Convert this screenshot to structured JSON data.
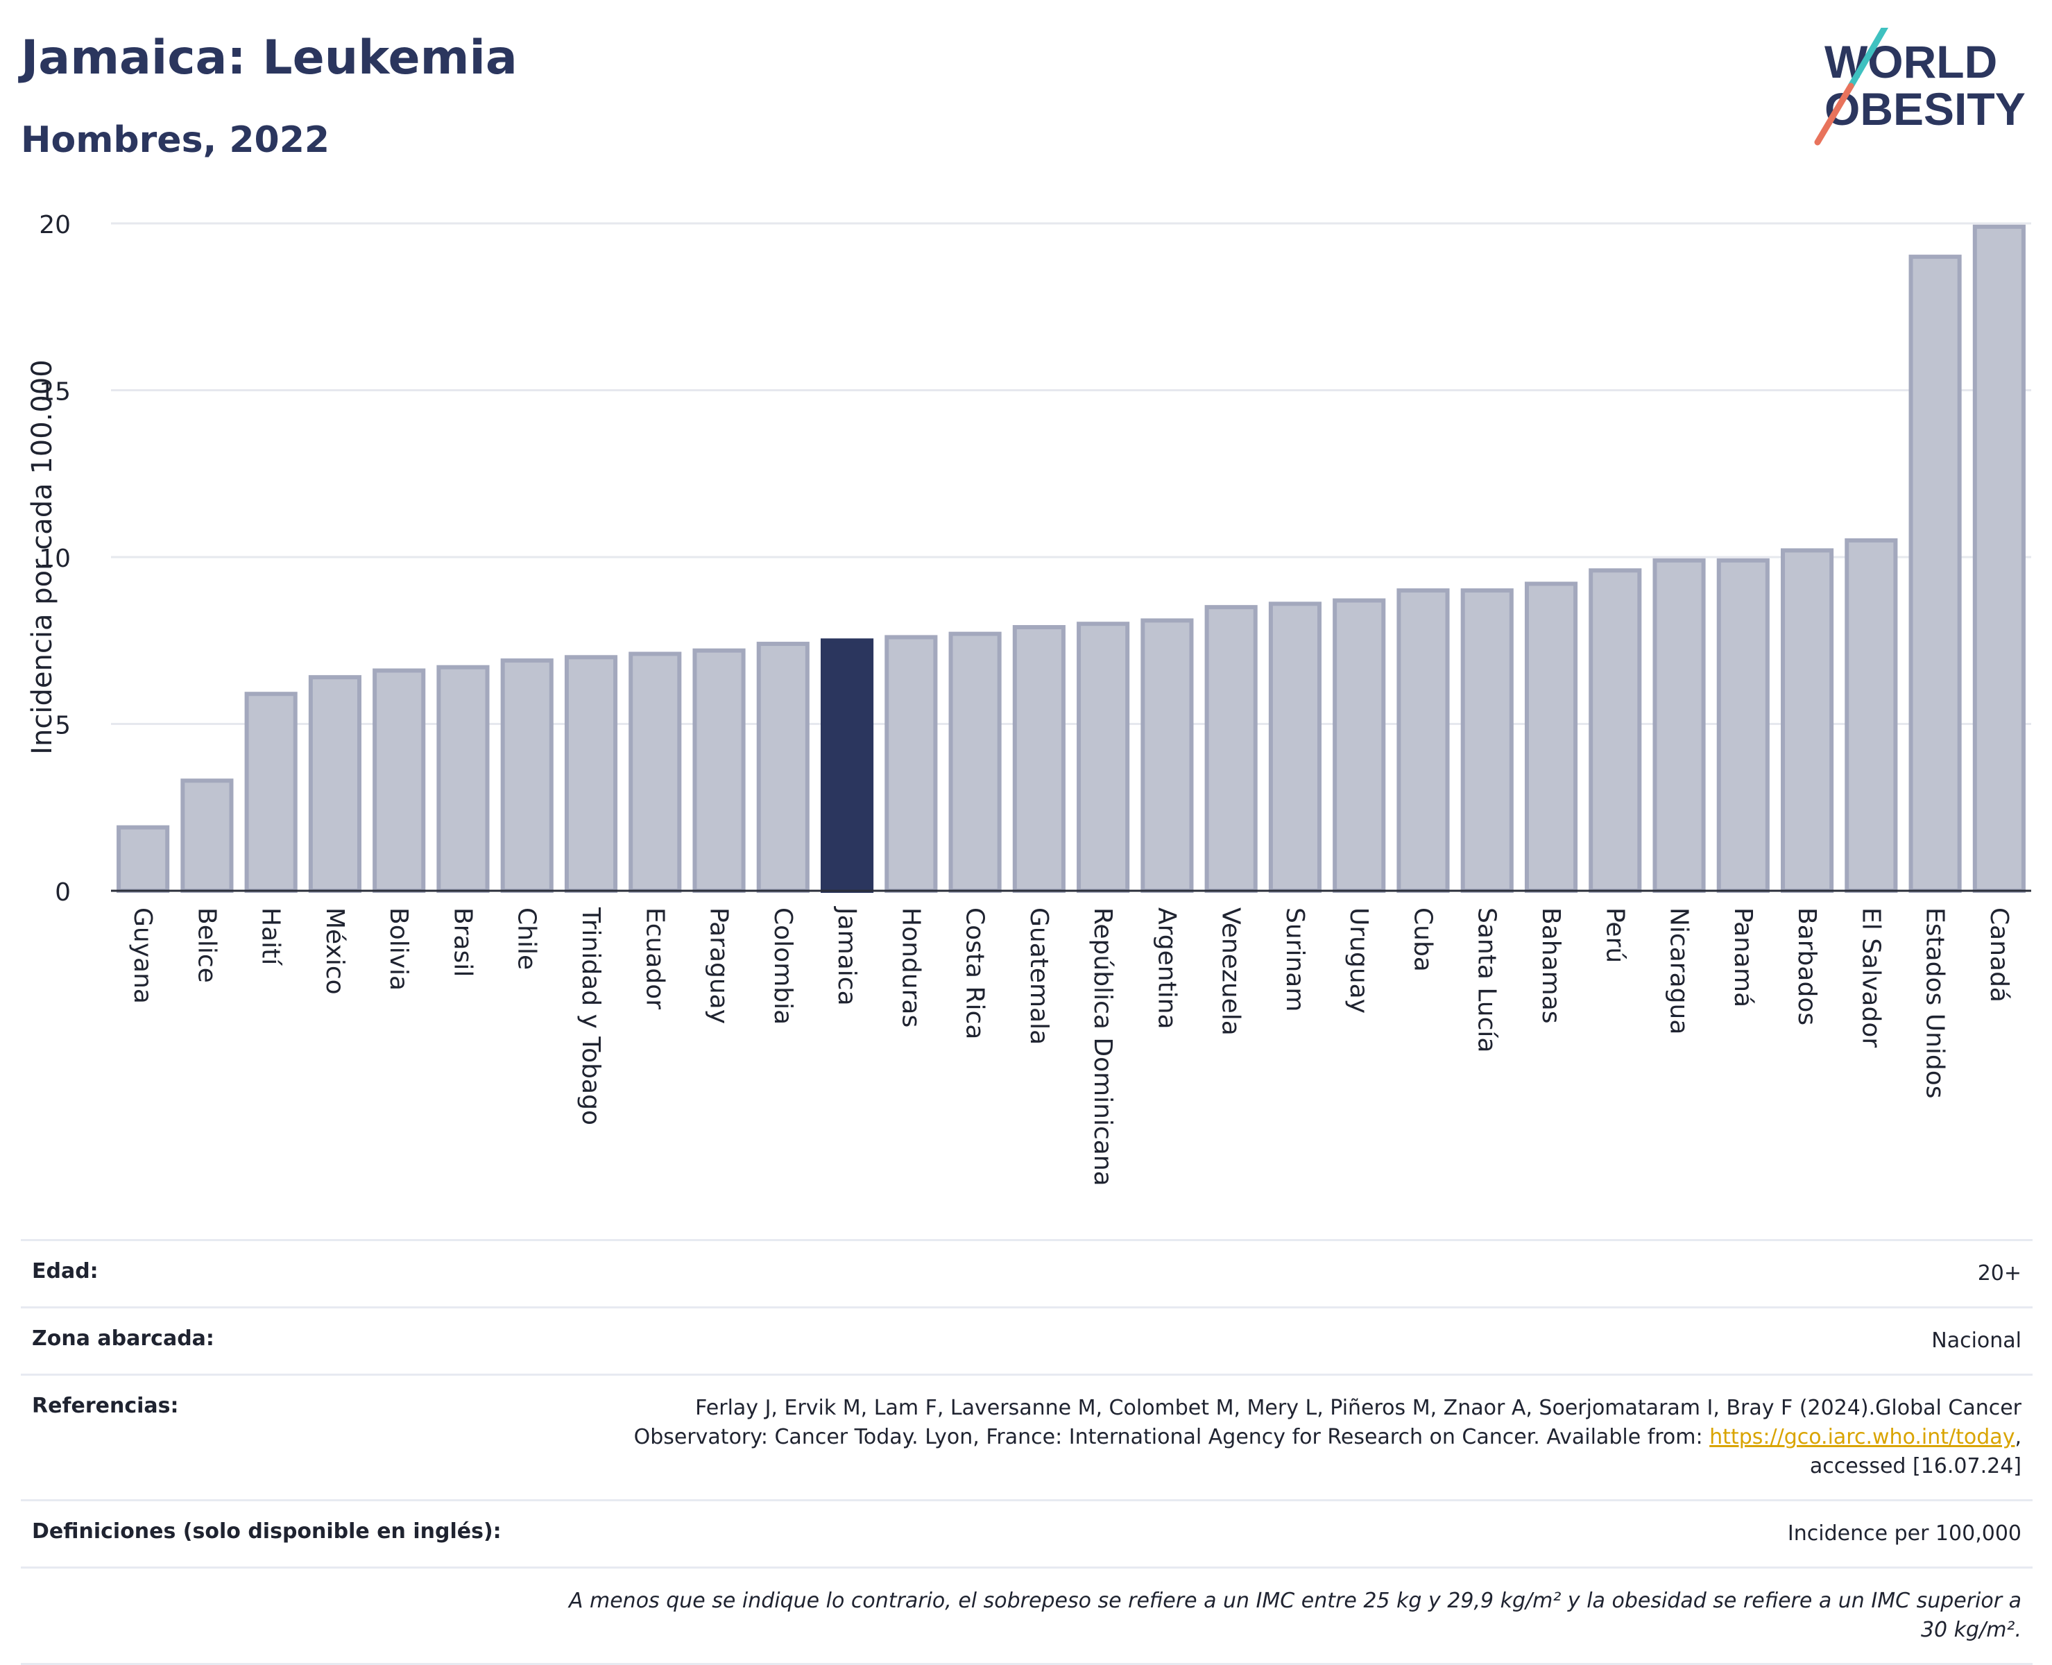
{
  "title": "Jamaica: Leukemia",
  "subtitle": "Hombres, 2022",
  "logo": {
    "line1": "WORLD",
    "line2": "OBESITY"
  },
  "colors": {
    "highlight": "#2b365e",
    "bar": "#bfc3d0",
    "bar_edge": "#a3a8bd",
    "title": "#2b365e"
  },
  "chart_data": {
    "type": "bar",
    "ylabel": "Incidencia por cada 100.000",
    "xlabel": "",
    "ylim": [
      0,
      20
    ],
    "yticks": [
      0,
      5,
      10,
      15,
      20
    ],
    "grid": true,
    "highlight": "Jamaica",
    "categories": [
      "Guyana",
      "Belice",
      "Haití",
      "México",
      "Bolivia",
      "Brasil",
      "Chile",
      "Trinidad y Tobago",
      "Ecuador",
      "Paraguay",
      "Colombia",
      "Jamaica",
      "Honduras",
      "Costa Rica",
      "Guatemala",
      "República Dominicana",
      "Argentina",
      "Venezuela",
      "Surinam",
      "Uruguay",
      "Cuba",
      "Santa Lucía",
      "Bahamas",
      "Perú",
      "Nicaragua",
      "Panamá",
      "Barbados",
      "El Salvador",
      "Estados Unidos",
      "Canadá"
    ],
    "values": [
      1.9,
      3.3,
      5.9,
      6.4,
      6.6,
      6.7,
      6.9,
      7.0,
      7.1,
      7.2,
      7.4,
      7.5,
      7.6,
      7.7,
      7.9,
      8.0,
      8.1,
      8.5,
      8.6,
      8.7,
      9.0,
      9.0,
      9.2,
      9.6,
      9.9,
      9.9,
      10.2,
      10.5,
      19.0,
      19.9
    ]
  },
  "meta": {
    "edad_label": "Edad:",
    "edad_value": "20+",
    "zona_label": "Zona abarcada:",
    "zona_value": "Nacional",
    "ref_label": "Referencias:",
    "ref_text": "Ferlay J, Ervik M, Lam F, Laversanne M, Colombet M, Mery L, Piñeros M, Znaor A, Soerjomataram I, Bray F (2024).Global Cancer Observatory: Cancer Today. Lyon, France: International Agency for Research on Cancer. Available from: ",
    "ref_link": "https://gco.iarc.who.int/today",
    "ref_tail": ", accessed [16.07.24]",
    "def_label": "Definiciones (solo disponible en inglés):",
    "def_value": "Incidence per 100,000",
    "note": "A menos que se indique lo contrario, el sobrepeso se refiere a un IMC entre 25 kg y 29,9 kg/m² y la obesidad se refiere a un IMC superior a 30 kg/m²."
  }
}
